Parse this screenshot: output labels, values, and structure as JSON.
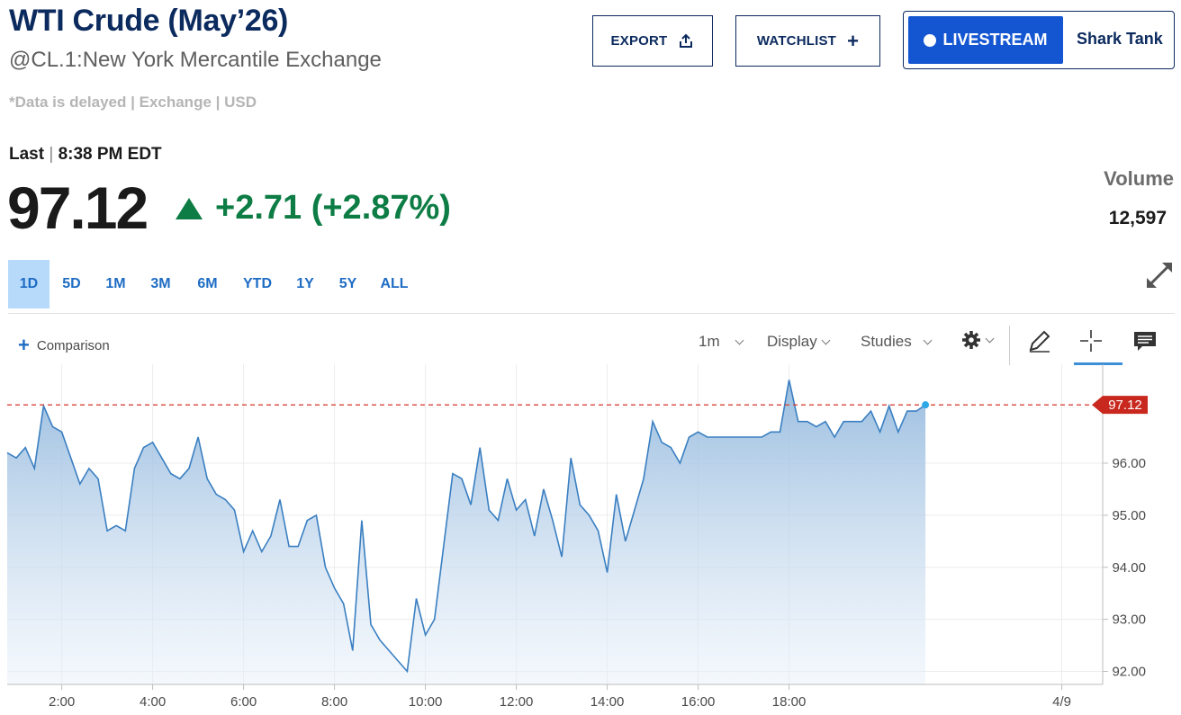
{
  "header": {
    "title": "WTI Crude (May’26)",
    "subtitle": "@CL.1:New York Mercantile Exchange",
    "delayed_note": "*Data is delayed | Exchange | USD"
  },
  "actions": {
    "export_label": "EXPORT",
    "watchlist_label": "WATCHLIST",
    "livestream_label": "LIVESTREAM",
    "livestream_show": "Shark Tank"
  },
  "quote": {
    "last_label": "Last",
    "last_time": "8:38 PM EDT",
    "price": "97.12",
    "change": "+2.71 (+2.87%)",
    "volume_label": "Volume",
    "volume_value": "12,597"
  },
  "ranges": [
    {
      "label": "1D",
      "active": true
    },
    {
      "label": "5D"
    },
    {
      "label": "1M"
    },
    {
      "label": "3M"
    },
    {
      "label": "6M"
    },
    {
      "label": "YTD"
    },
    {
      "label": "1Y"
    },
    {
      "label": "5Y"
    },
    {
      "label": "ALL"
    }
  ],
  "toolbar": {
    "comparison_label": "Comparison",
    "interval_label": "1m",
    "display_label": "Display",
    "studies_label": "Studies"
  },
  "colors": {
    "title": "#0b2a5e",
    "positive": "#0d7d45",
    "line": "#3a7fc1",
    "last_price_marker": "#c8281d",
    "range_active_bg": "#b7dafa"
  },
  "chart_data": {
    "type": "area",
    "last_price_label": "97.12",
    "last_price": 97.12,
    "ylim": [
      91.75,
      97.9
    ],
    "y_ticks": [
      92,
      93,
      94,
      95,
      96
    ],
    "y_tick_labels": [
      "92.00",
      "93.00",
      "94.00",
      "95.00",
      "96.00"
    ],
    "xlim": [
      0.8,
      24.9
    ],
    "x_ticks": [
      2,
      4,
      6,
      8,
      10,
      12,
      14,
      16,
      18,
      24
    ],
    "x_tick_labels": [
      "2:00",
      "4:00",
      "6:00",
      "8:00",
      "10:00",
      "12:00",
      "14:00",
      "16:00",
      "18:00",
      "4/9"
    ],
    "grid": true,
    "x": [
      0.8,
      1.0,
      1.2,
      1.4,
      1.6,
      1.8,
      2.0,
      2.2,
      2.4,
      2.6,
      2.8,
      3.0,
      3.2,
      3.4,
      3.6,
      3.8,
      4.0,
      4.2,
      4.4,
      4.6,
      4.8,
      5.0,
      5.2,
      5.4,
      5.6,
      5.8,
      6.0,
      6.2,
      6.4,
      6.6,
      6.8,
      7.0,
      7.2,
      7.4,
      7.6,
      7.8,
      8.0,
      8.2,
      8.4,
      8.6,
      8.8,
      9.0,
      9.2,
      9.4,
      9.6,
      9.8,
      10.0,
      10.2,
      10.4,
      10.6,
      10.8,
      11.0,
      11.2,
      11.4,
      11.6,
      11.8,
      12.0,
      12.2,
      12.4,
      12.6,
      12.8,
      13.0,
      13.2,
      13.4,
      13.6,
      13.8,
      14.0,
      14.2,
      14.4,
      14.6,
      14.8,
      15.0,
      15.2,
      15.4,
      15.6,
      15.8,
      16.0,
      16.2,
      16.4,
      16.6,
      16.8,
      17.0,
      17.2,
      17.4,
      17.6,
      17.8,
      18.0,
      18.2,
      18.4,
      18.6,
      18.8,
      19.0,
      19.2,
      19.4,
      19.6,
      19.8,
      20.0,
      20.2,
      20.4,
      20.6,
      20.8,
      21.0
    ],
    "values": [
      96.2,
      96.1,
      96.3,
      95.9,
      97.1,
      96.7,
      96.6,
      96.1,
      95.6,
      95.9,
      95.7,
      94.7,
      94.8,
      94.7,
      95.9,
      96.3,
      96.4,
      96.1,
      95.8,
      95.7,
      95.9,
      96.5,
      95.7,
      95.4,
      95.3,
      95.1,
      94.3,
      94.7,
      94.3,
      94.6,
      95.3,
      94.4,
      94.4,
      94.9,
      95.0,
      94.0,
      93.6,
      93.3,
      92.4,
      94.9,
      92.9,
      92.6,
      92.4,
      92.2,
      92.0,
      93.4,
      92.7,
      93.0,
      94.4,
      95.8,
      95.7,
      95.2,
      96.3,
      95.1,
      94.9,
      95.7,
      95.1,
      95.3,
      94.6,
      95.5,
      94.9,
      94.2,
      96.1,
      95.2,
      95.0,
      94.7,
      93.9,
      95.4,
      94.5,
      95.1,
      95.7,
      96.8,
      96.4,
      96.3,
      96.0,
      96.5,
      96.6,
      96.5,
      96.5,
      96.5,
      96.5,
      96.5,
      96.5,
      96.5,
      96.6,
      96.6,
      97.6,
      96.8,
      96.8,
      96.7,
      96.8,
      96.5,
      96.8,
      96.8,
      96.8,
      97.0,
      96.6,
      97.1,
      96.6,
      97.0,
      97.0,
      97.12
    ]
  }
}
